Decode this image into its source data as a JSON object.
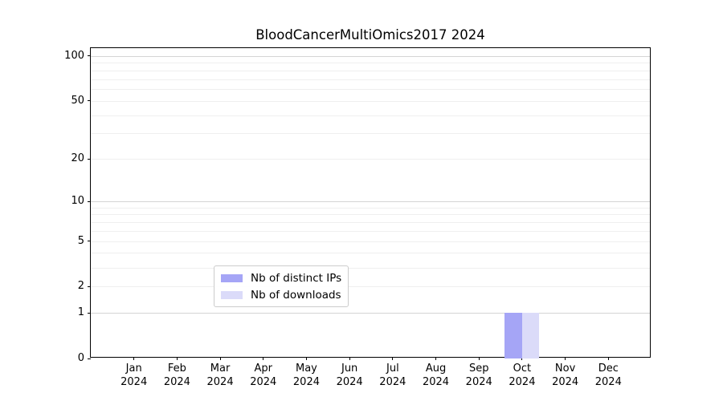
{
  "figure": {
    "background": "#ffffff"
  },
  "chart_data": {
    "type": "bar",
    "title": "BloodCancerMultiOmics2017 2024",
    "year": "2024",
    "categories": [
      "Jan",
      "Feb",
      "Mar",
      "Apr",
      "May",
      "Jun",
      "Jul",
      "Aug",
      "Sep",
      "Oct",
      "Nov",
      "Dec"
    ],
    "series": [
      {
        "name": "Nb of distinct IPs",
        "color": "#a5a5f6",
        "values": [
          0,
          0,
          0,
          0,
          0,
          0,
          0,
          0,
          0,
          1,
          0,
          0
        ]
      },
      {
        "name": "Nb of downloads",
        "color": "#dbdbf9",
        "values": [
          0,
          0,
          0,
          0,
          0,
          0,
          0,
          0,
          0,
          1,
          0,
          0
        ]
      }
    ],
    "y_scale": "log1p",
    "ylim": [
      0,
      113
    ],
    "y_ticks": [
      0,
      1,
      2,
      5,
      10,
      20,
      50,
      100
    ],
    "y_major_gridlines": [
      1,
      10,
      100
    ],
    "y_minor_gridlines": [
      2,
      3,
      4,
      5,
      6,
      7,
      8,
      9,
      20,
      30,
      40,
      50,
      60,
      70,
      80,
      90
    ],
    "xlabel": "",
    "ylabel": "",
    "grid": "horizontal",
    "legend_position": "lower-center"
  },
  "colors": {
    "axis": "#000000",
    "grid_major": "#d5d5d5",
    "grid_minor": "#efefef",
    "legend_border": "#cccccc"
  }
}
